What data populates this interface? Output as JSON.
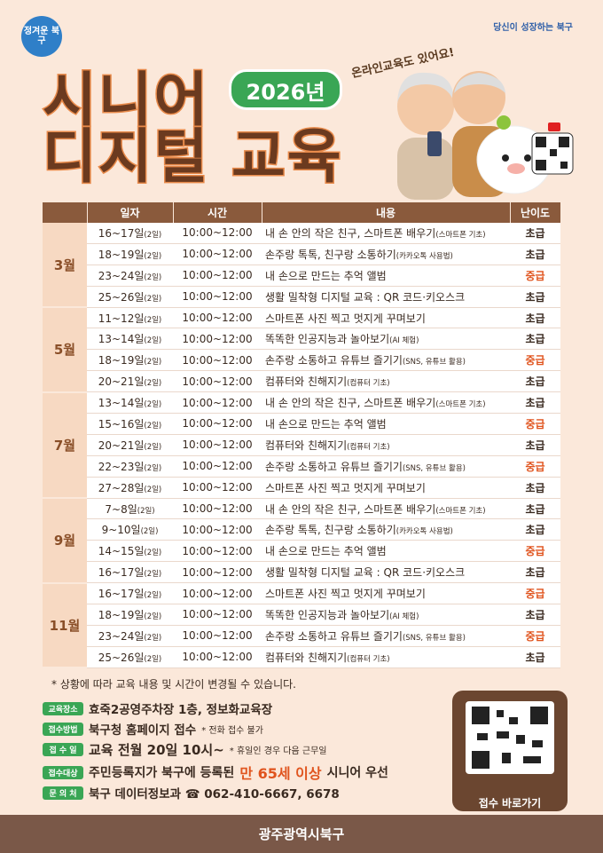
{
  "header": {
    "logo_left": "정겨운 북구",
    "logo_right": "당신이 성장하는 북구",
    "title_line1": "시니어",
    "title_line2": "디지털 교육",
    "badge": "2026년",
    "tagline": "온라인교육도 있어요!"
  },
  "table": {
    "columns": [
      "일자",
      "시간",
      "내용",
      "난이도"
    ],
    "months": [
      {
        "month": "3월",
        "rows": [
          {
            "date": "16~17일",
            "days": "(2일)",
            "time": "10:00~12:00",
            "content": "내 손 안의 작은 친구, 스마트폰 배우기",
            "content_note": "(스마트폰 기초)",
            "level": "초급",
            "color": "#3a2a20"
          },
          {
            "date": "18~19일",
            "days": "(2일)",
            "time": "10:00~12:00",
            "content": "손주랑 톡톡, 친구랑 소통하기",
            "content_note": "(카카오톡 사용법)",
            "level": "초급",
            "color": "#3a2a20"
          },
          {
            "date": "23~24일",
            "days": "(2일)",
            "time": "10:00~12:00",
            "content": "내 손으로 만드는 추억 앨범",
            "content_note": null,
            "level": "중급",
            "color": "#e0541e"
          },
          {
            "date": "25~26일",
            "days": "(2일)",
            "time": "10:00~12:00",
            "content": "생활 밀착형 디지털 교육 : QR 코드·키오스크",
            "content_note": null,
            "level": "초급",
            "color": "#3a2a20"
          }
        ]
      },
      {
        "month": "5월",
        "rows": [
          {
            "date": "11~12일",
            "days": "(2일)",
            "time": "10:00~12:00",
            "content": "스마트폰 사진 찍고 멋지게 꾸며보기",
            "content_note": null,
            "level": "초급",
            "color": "#3a2a20"
          },
          {
            "date": "13~14일",
            "days": "(2일)",
            "time": "10:00~12:00",
            "content": "똑똑한 인공지능과 놀아보기",
            "content_note": "(AI 체험)",
            "level": "초급",
            "color": "#3a2a20"
          },
          {
            "date": "18~19일",
            "days": "(2일)",
            "time": "10:00~12:00",
            "content": "손주랑 소통하고 유튜브 즐기기",
            "content_note": "(SNS, 유튜브 활용)",
            "level": "중급",
            "color": "#e0541e"
          },
          {
            "date": "20~21일",
            "days": "(2일)",
            "time": "10:00~12:00",
            "content": "컴퓨터와 친해지기",
            "content_note": "(컴퓨터 기초)",
            "level": "초급",
            "color": "#3a2a20"
          }
        ]
      },
      {
        "month": "7월",
        "rows": [
          {
            "date": "13~14일",
            "days": "(2일)",
            "time": "10:00~12:00",
            "content": "내 손 안의 작은 친구, 스마트폰 배우기",
            "content_note": "(스마트폰 기초)",
            "level": "초급",
            "color": "#3a2a20"
          },
          {
            "date": "15~16일",
            "days": "(2일)",
            "time": "10:00~12:00",
            "content": "내 손으로 만드는 추억 앨범",
            "content_note": null,
            "level": "중급",
            "color": "#e0541e"
          },
          {
            "date": "20~21일",
            "days": "(2일)",
            "time": "10:00~12:00",
            "content": "컴퓨터와 친해지기",
            "content_note": "(컴퓨터 기초)",
            "level": "초급",
            "color": "#3a2a20"
          },
          {
            "date": "22~23일",
            "days": "(2일)",
            "time": "10:00~12:00",
            "content": "손주랑 소통하고 유튜브 즐기기",
            "content_note": "(SNS, 유튜브 활용)",
            "level": "중급",
            "color": "#e0541e"
          },
          {
            "date": "27~28일",
            "days": "(2일)",
            "time": "10:00~12:00",
            "content": "스마트폰 사진 찍고 멋지게 꾸며보기",
            "content_note": null,
            "level": "초급",
            "color": "#3a2a20"
          }
        ]
      },
      {
        "month": "9월",
        "rows": [
          {
            "date": "7~8일",
            "days": "(2일)",
            "time": "10:00~12:00",
            "content": "내 손 안의 작은 친구, 스마트폰 배우기",
            "content_note": "(스마트폰 기초)",
            "level": "초급",
            "color": "#3a2a20"
          },
          {
            "date": "9~10일",
            "days": "(2일)",
            "time": "10:00~12:00",
            "content": "손주랑 톡톡, 친구랑 소통하기",
            "content_note": "(카카오톡 사용법)",
            "level": "초급",
            "color": "#3a2a20"
          },
          {
            "date": "14~15일",
            "days": "(2일)",
            "time": "10:00~12:00",
            "content": "내 손으로 만드는 추억 앨범",
            "content_note": null,
            "level": "중급",
            "color": "#e0541e"
          },
          {
            "date": "16~17일",
            "days": "(2일)",
            "time": "10:00~12:00",
            "content": "생활 밀착형 디지털 교육 : QR 코드·키오스크",
            "content_note": null,
            "level": "초급",
            "color": "#3a2a20"
          }
        ]
      },
      {
        "month": "11월",
        "rows": [
          {
            "date": "16~17일",
            "days": "(2일)",
            "time": "10:00~12:00",
            "content": "스마트폰 사진 찍고 멋지게 꾸며보기",
            "content_note": null,
            "level": "중급",
            "color": "#e0541e"
          },
          {
            "date": "18~19일",
            "days": "(2일)",
            "time": "10:00~12:00",
            "content": "똑똑한 인공지능과 놀아보기",
            "content_note": "(AI 체험)",
            "level": "초급",
            "color": "#3a2a20"
          },
          {
            "date": "23~24일",
            "days": "(2일)",
            "time": "10:00~12:00",
            "content": "손주랑 소통하고 유튜브 즐기기",
            "content_note": "(SNS, 유튜브 활용)",
            "level": "중급",
            "color": "#e0541e"
          },
          {
            "date": "25~26일",
            "days": "(2일)",
            "time": "10:00~12:00",
            "content": "컴퓨터와 친해지기",
            "content_note": "(컴퓨터 기초)",
            "level": "초급",
            "color": "#3a2a20"
          }
        ]
      }
    ]
  },
  "note": "* 상황에 따라 교육 내용 및 시간이 변경될 수 있습니다.",
  "info": {
    "place": {
      "label": "교육장소",
      "text": "효죽2공영주차장 1층, 정보화교육장"
    },
    "method": {
      "label": "접수방법",
      "text": "북구청 홈페이지 접수",
      "note": "* 전화 접수 불가"
    },
    "date": {
      "label": "접 수 일",
      "text": "교육 전월 20일 10시~",
      "note": "* 휴일인 경우 다음 근무일"
    },
    "target": {
      "label": "접수대상",
      "text": "주민등록지가 북구에 등록된",
      "highlight": "만 65세 이상",
      "text_after": "시니어 우선"
    },
    "contact": {
      "label": "문 의 처",
      "text": "북구 데이터정보과 ☎ 062-410-6667, 6678"
    }
  },
  "qr_label": "접수 바로가기",
  "footer": "광주광역시북구"
}
